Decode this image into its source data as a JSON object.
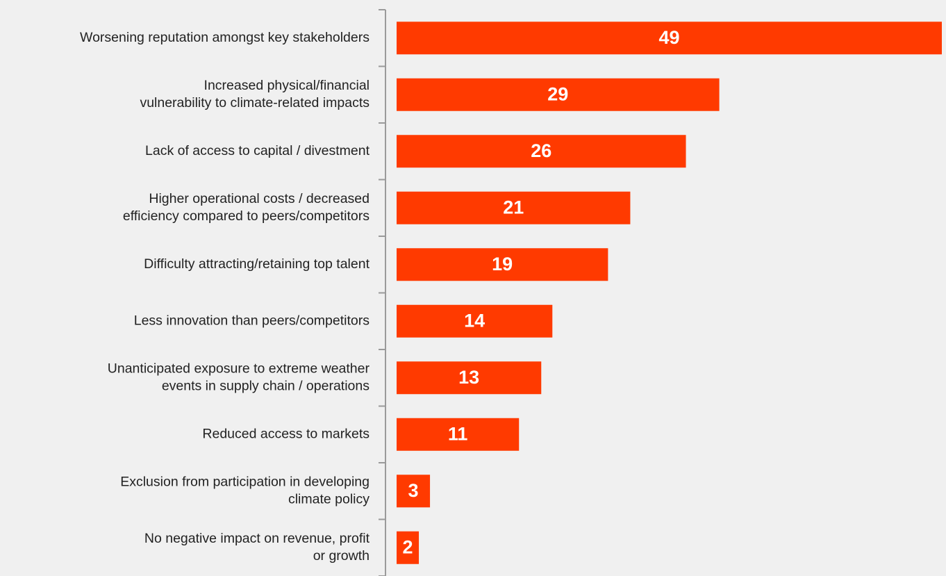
{
  "chart_data": {
    "type": "bar",
    "orientation": "horizontal",
    "categories": [
      [
        "Worsening reputation amongst key stakeholders"
      ],
      [
        "Increased physical/financial",
        "vulnerability to climate-related impacts"
      ],
      [
        "Lack of access to capital / divestment"
      ],
      [
        "Higher operational costs / decreased",
        "efficiency compared to peers/competitors"
      ],
      [
        "Difficulty attracting/retaining top talent"
      ],
      [
        "Less innovation than peers/competitors"
      ],
      [
        "Unanticipated exposure to extreme weather",
        "events in supply chain / operations"
      ],
      [
        "Reduced access to markets"
      ],
      [
        "Exclusion from participation in developing",
        "climate policy"
      ],
      [
        "No negative impact on revenue, profit",
        "or growth"
      ]
    ],
    "values": [
      49,
      29,
      26,
      21,
      19,
      14,
      13,
      11,
      3,
      2
    ],
    "title": "",
    "xlabel": "",
    "ylabel": "",
    "xlim": [
      0,
      49
    ],
    "grid": false,
    "legend": "none",
    "bar_color": "#ff3a00",
    "axis_color": "#9a9a9a",
    "value_label_color": "#ffffff",
    "text_color": "#222222"
  }
}
